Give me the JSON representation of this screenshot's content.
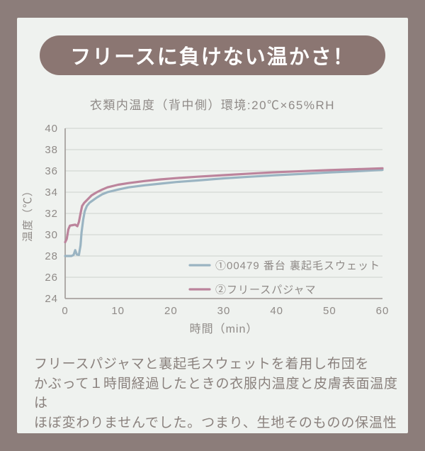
{
  "header": {
    "title": "フリースに負けない温かさ！"
  },
  "chart": {
    "subtitle": "衣類内温度（背中側）環境:20℃×65%RH"
  },
  "chart_data": {
    "type": "line",
    "title": "衣類内温度（背中側）環境:20℃×65%RH",
    "xlabel": "時間（min）",
    "ylabel": "温度（℃）",
    "xlim": [
      0,
      60
    ],
    "ylim": [
      24,
      40
    ],
    "xticks": [
      0,
      10,
      20,
      30,
      40,
      50,
      60
    ],
    "yticks": [
      24,
      26,
      28,
      30,
      32,
      34,
      36,
      38,
      40
    ],
    "grid": true,
    "legend_position": "lower right",
    "series": [
      {
        "name": "①00479 番台 裏起毛スウェット",
        "color": "#9ab4c2",
        "points": [
          [
            0,
            28.0
          ],
          [
            1.2,
            28.0
          ],
          [
            1.6,
            28.1
          ],
          [
            1.9,
            28.55
          ],
          [
            2.2,
            28.15
          ],
          [
            2.6,
            28.1
          ],
          [
            2.9,
            29.0
          ],
          [
            3.1,
            30.2
          ],
          [
            3.4,
            31.4
          ],
          [
            3.7,
            32.2
          ],
          [
            4.1,
            32.7
          ],
          [
            4.6,
            33.0
          ],
          [
            5,
            33.15
          ],
          [
            6,
            33.5
          ],
          [
            7,
            33.8
          ],
          [
            8,
            34.0
          ],
          [
            10,
            34.25
          ],
          [
            12,
            34.45
          ],
          [
            15,
            34.65
          ],
          [
            18,
            34.8
          ],
          [
            21,
            34.95
          ],
          [
            25,
            35.1
          ],
          [
            30,
            35.3
          ],
          [
            35,
            35.45
          ],
          [
            40,
            35.6
          ],
          [
            45,
            35.72
          ],
          [
            50,
            35.85
          ],
          [
            55,
            35.97
          ],
          [
            60,
            36.1
          ]
        ]
      },
      {
        "name": "②フリースパジャマ",
        "color": "#bc849c",
        "points": [
          [
            0,
            29.3
          ],
          [
            0.3,
            29.6
          ],
          [
            0.6,
            30.5
          ],
          [
            0.9,
            30.85
          ],
          [
            1.4,
            30.9
          ],
          [
            1.9,
            30.95
          ],
          [
            2.3,
            30.8
          ],
          [
            2.6,
            31.2
          ],
          [
            2.9,
            32.0
          ],
          [
            3.2,
            32.7
          ],
          [
            3.6,
            33.0
          ],
          [
            4.2,
            33.3
          ],
          [
            5,
            33.7
          ],
          [
            6,
            34.0
          ],
          [
            7,
            34.25
          ],
          [
            8,
            34.45
          ],
          [
            10,
            34.7
          ],
          [
            12,
            34.85
          ],
          [
            15,
            35.05
          ],
          [
            18,
            35.2
          ],
          [
            21,
            35.32
          ],
          [
            25,
            35.45
          ],
          [
            30,
            35.6
          ],
          [
            35,
            35.75
          ],
          [
            40,
            35.88
          ],
          [
            45,
            35.98
          ],
          [
            50,
            36.07
          ],
          [
            55,
            36.16
          ],
          [
            60,
            36.25
          ]
        ]
      }
    ]
  },
  "description": {
    "text": "フリースパジャマと裏起毛スウェットを着用し布団を\nかぶって１時間経過したときの衣服内温度と皮膚表面温度は\nほぼ変わりませんでした。つまり、生地そのものの保温性では\nなく、着用しての温かさはほぼ同等という結果でした。"
  },
  "colors": {
    "frame": "#8c7d7a",
    "banner": "#8b7672",
    "background": "#eff2ef",
    "gridline": "#d8dcd8",
    "axis": "#a8a3a0",
    "tick_text": "#8f8a87",
    "body_text": "#8a817d",
    "series_blue": "#9ab4c2",
    "series_pink": "#bc849c"
  }
}
